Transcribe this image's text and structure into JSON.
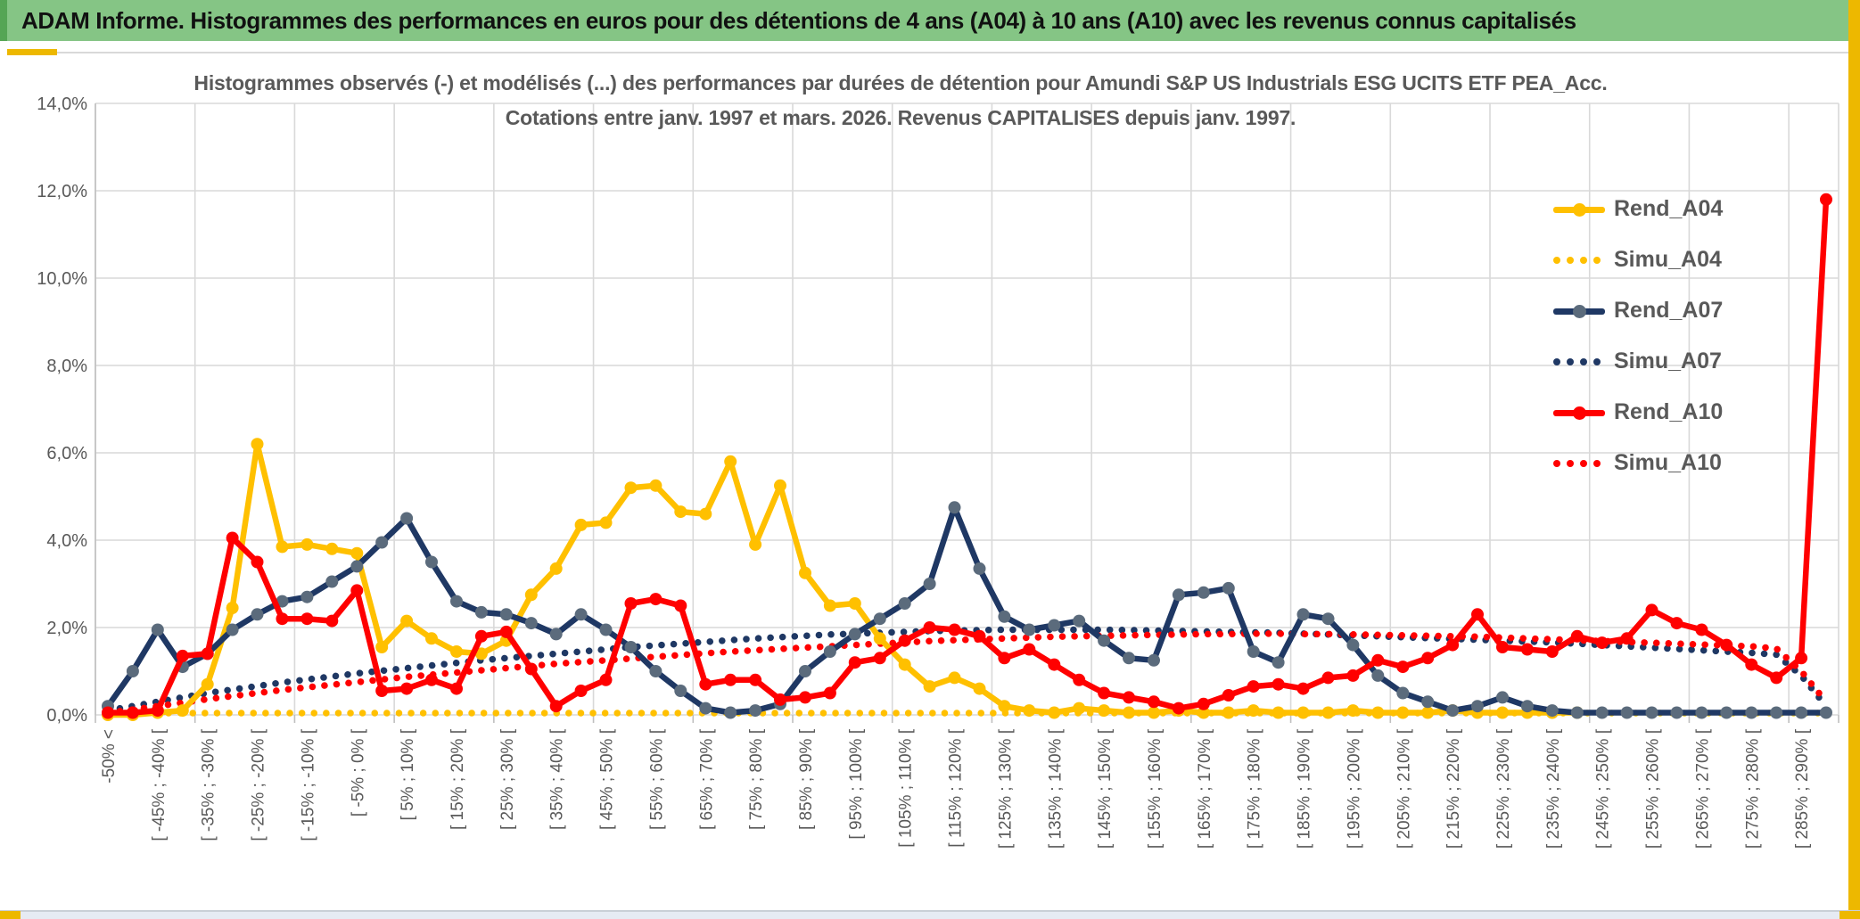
{
  "header": {
    "title": "ADAM Informe. Histogrammes des performances en euros pour des détentions de 4 ans (A04) à 10 ans (A10) avec les revenus connus capitalisés"
  },
  "legend": {
    "items": [
      {
        "label": "Rend_A04",
        "color": "#FFC000",
        "marker_color": "#FFC000",
        "style": "solid"
      },
      {
        "label": "Simu_A04",
        "color": "#FFC000",
        "marker_color": "#FFC000",
        "style": "dotted"
      },
      {
        "label": "Rend_A07",
        "color": "#1F3864",
        "marker_color": "#5B6B7C",
        "style": "solid"
      },
      {
        "label": "Simu_A07",
        "color": "#1F3864",
        "marker_color": "#1F3864",
        "style": "dotted"
      },
      {
        "label": "Rend_A10",
        "color": "#FF0000",
        "marker_color": "#FF0000",
        "style": "solid"
      },
      {
        "label": "Simu_A10",
        "color": "#FF0000",
        "marker_color": "#FF0000",
        "style": "dotted"
      }
    ]
  },
  "chart_data": {
    "type": "line",
    "title": "Histogrammes observés (-) et modélisés (...) des performances par durées de détention pour Amundi S&P US Industrials ESG UCITS ETF PEA_Acc.",
    "subtitle": "Cotations entre janv. 1997 et mars. 2026. Revenus CAPITALISES depuis janv. 1997.",
    "ylabel": "",
    "xlabel": "",
    "ylim": [
      0,
      14
    ],
    "grid": true,
    "legend_position": "right",
    "bins": 70,
    "x_label_every_n_bins": 2,
    "y_tick_labels": [
      "0,0%",
      "2,0%",
      "4,0%",
      "6,0%",
      "8,0%",
      "10,0%",
      "12,0%",
      "14,0%"
    ],
    "x_tick_labels": [
      "-50% <",
      "[ -45% ; -40% [",
      "[ -35% ; -30% [",
      "[ -25% ; -20% [",
      "[ -15% ; -10% [",
      "[ -5% ; 0% [",
      "[ 5% ; 10% [",
      "[ 15% ; 20% [",
      "[ 25% ; 30% [",
      "[ 35% ; 40% [",
      "[ 45% ; 50% [",
      "[ 55% ; 60% [",
      "[ 65% ; 70% [",
      "[ 75% ; 80% [",
      "[ 85% ; 90% [",
      "[ 95% ; 100% [",
      "[ 105% ; 110% [",
      "[ 115% ; 120% [",
      "[ 125% ; 130% [",
      "[ 135% ; 140% [",
      "[ 145% ; 150% [",
      "[ 155% ; 160% [",
      "[ 165% ; 170% [",
      "[ 175% ; 180% [",
      "[ 185% ; 190% [",
      "[ 195% ; 200% [",
      "[ 205% ; 210% [",
      "[ 215% ; 220% [",
      "[ 225% ; 230% [",
      "[ 235% ; 240% [",
      "[ 245% ; 250% [",
      "[ 255% ; 260% [",
      "[ 265% ; 270% [",
      "[ 275% ; 280% [",
      "[ 285% ; 290% ["
    ],
    "series": [
      {
        "name": "Rend_A04",
        "color": "#FFC000",
        "marker_color": "#FFC000",
        "line": "solid",
        "values": [
          0,
          0,
          0.05,
          0.1,
          0.7,
          2.45,
          6.2,
          3.85,
          3.9,
          3.8,
          3.7,
          1.55,
          2.15,
          1.75,
          1.45,
          1.4,
          1.7,
          2.75,
          3.35,
          4.35,
          4.4,
          5.2,
          5.25,
          4.65,
          4.6,
          5.8,
          3.9,
          5.25,
          3.25,
          2.5,
          2.55,
          1.75,
          1.15,
          0.65,
          0.85,
          0.6,
          0.2,
          0.1,
          0.05,
          0.15,
          0.1,
          0.05,
          0.05,
          0.1,
          0.05,
          0.05,
          0.1,
          0.05,
          0.05,
          0.05,
          0.1,
          0.05,
          0.05,
          0.05,
          0.1,
          0.05,
          0.05,
          0.05,
          0.05,
          0.05,
          null,
          null,
          null,
          null,
          null,
          null,
          null,
          null,
          null,
          null
        ]
      },
      {
        "name": "Simu_A04",
        "color": "#FFC000",
        "marker_color": "#FFC000",
        "line": "dotted",
        "values": [
          0.04,
          0.04,
          0.04,
          0.04,
          0.04,
          0.04,
          0.04,
          0.04,
          0.04,
          0.04,
          0.04,
          0.04,
          0.04,
          0.04,
          0.04,
          0.04,
          0.04,
          0.04,
          0.04,
          0.04,
          0.04,
          0.04,
          0.04,
          0.04,
          0.04,
          0.04,
          0.04,
          0.04,
          0.04,
          0.04,
          0.04,
          0.04,
          0.04,
          0.04,
          0.04,
          0.04,
          0.04,
          0.04,
          0.04,
          0.04,
          0.04,
          0.04,
          0.04,
          0.04,
          0.04,
          0.04,
          0.04,
          0.04,
          0.04,
          0.04,
          0.04,
          0.04,
          0.04,
          0.04,
          0.04,
          0.04,
          0.04,
          0.04,
          0.04,
          0.04,
          0.04,
          0.04,
          0.04,
          0.04,
          0.04,
          0.04,
          0.04,
          0.04,
          0.04,
          0.04
        ]
      },
      {
        "name": "Rend_A07",
        "color": "#1F3864",
        "marker_color": "#5B6B7C",
        "line": "solid",
        "values": [
          0.2,
          1.0,
          1.95,
          1.1,
          1.4,
          1.95,
          2.3,
          2.6,
          2.7,
          3.05,
          3.4,
          3.95,
          4.5,
          3.5,
          2.6,
          2.35,
          2.3,
          2.1,
          1.85,
          2.3,
          1.95,
          1.55,
          1.0,
          0.55,
          0.15,
          0.05,
          0.1,
          0.25,
          1.0,
          1.45,
          1.85,
          2.2,
          2.55,
          3.0,
          4.75,
          3.35,
          2.25,
          1.95,
          2.05,
          2.15,
          1.7,
          1.3,
          1.25,
          2.75,
          2.8,
          2.9,
          1.45,
          1.2,
          2.3,
          2.2,
          1.6,
          0.9,
          0.5,
          0.3,
          0.1,
          0.2,
          0.4,
          0.2,
          0.1,
          0.05,
          0.05,
          0.05,
          0.05,
          0.05,
          0.05,
          0.05,
          0.05,
          0.05,
          0.05,
          0.05
        ]
      },
      {
        "name": "Simu_A07",
        "color": "#1F3864",
        "marker_color": "#1F3864",
        "line": "dotted",
        "values": [
          0.1,
          0.2,
          0.3,
          0.4,
          0.5,
          0.58,
          0.66,
          0.74,
          0.81,
          0.88,
          0.95,
          1.01,
          1.07,
          1.13,
          1.19,
          1.25,
          1.3,
          1.35,
          1.4,
          1.45,
          1.5,
          1.55,
          1.59,
          1.63,
          1.67,
          1.71,
          1.75,
          1.78,
          1.81,
          1.84,
          1.86,
          1.88,
          1.9,
          1.92,
          1.93,
          1.94,
          1.95,
          1.95,
          1.95,
          1.95,
          1.95,
          1.94,
          1.93,
          1.92,
          1.91,
          1.9,
          1.89,
          1.88,
          1.86,
          1.84,
          1.82,
          1.8,
          1.78,
          1.76,
          1.74,
          1.72,
          1.7,
          1.68,
          1.66,
          1.63,
          1.6,
          1.57,
          1.54,
          1.51,
          1.48,
          1.45,
          1.42,
          1.38,
          0.9,
          0.2
        ]
      },
      {
        "name": "Rend_A10",
        "color": "#FF0000",
        "marker_color": "#FF0000",
        "line": "solid",
        "values": [
          0.05,
          0.05,
          0.1,
          1.35,
          1.4,
          4.05,
          3.5,
          2.2,
          2.2,
          2.15,
          2.85,
          0.55,
          0.6,
          0.8,
          0.6,
          1.8,
          1.9,
          1.05,
          0.2,
          0.55,
          0.8,
          2.55,
          2.65,
          2.5,
          0.7,
          0.8,
          0.8,
          0.35,
          0.4,
          0.5,
          1.2,
          1.3,
          1.7,
          2.0,
          1.95,
          1.8,
          1.3,
          1.5,
          1.15,
          0.8,
          0.5,
          0.4,
          0.3,
          0.15,
          0.25,
          0.45,
          0.65,
          0.7,
          0.6,
          0.85,
          0.9,
          1.25,
          1.1,
          1.3,
          1.6,
          2.3,
          1.55,
          1.5,
          1.45,
          1.8,
          1.65,
          1.75,
          2.4,
          2.1,
          1.95,
          1.6,
          1.15,
          0.85,
          1.3,
          11.8
        ]
      },
      {
        "name": "Simu_A10",
        "color": "#FF0000",
        "marker_color": "#FF0000",
        "line": "dotted",
        "values": [
          0.05,
          0.12,
          0.2,
          0.28,
          0.36,
          0.43,
          0.5,
          0.57,
          0.63,
          0.69,
          0.75,
          0.81,
          0.87,
          0.92,
          0.97,
          1.02,
          1.07,
          1.12,
          1.17,
          1.21,
          1.25,
          1.29,
          1.33,
          1.37,
          1.41,
          1.45,
          1.48,
          1.51,
          1.54,
          1.57,
          1.6,
          1.63,
          1.66,
          1.69,
          1.71,
          1.73,
          1.75,
          1.77,
          1.79,
          1.8,
          1.81,
          1.82,
          1.83,
          1.84,
          1.85,
          1.85,
          1.86,
          1.86,
          1.85,
          1.85,
          1.84,
          1.83,
          1.82,
          1.81,
          1.8,
          1.79,
          1.77,
          1.75,
          1.73,
          1.71,
          1.69,
          1.67,
          1.65,
          1.63,
          1.61,
          1.59,
          1.57,
          1.52,
          1.0,
          0.3
        ]
      }
    ]
  },
  "frame": {
    "banner_green": "#85C585",
    "banner_sliver_green": "#55A555",
    "gold": "#EDB800",
    "grid_color": "#D9D9D9",
    "text_gray": "#595959",
    "bottom_bar": "#E6EBF3"
  }
}
